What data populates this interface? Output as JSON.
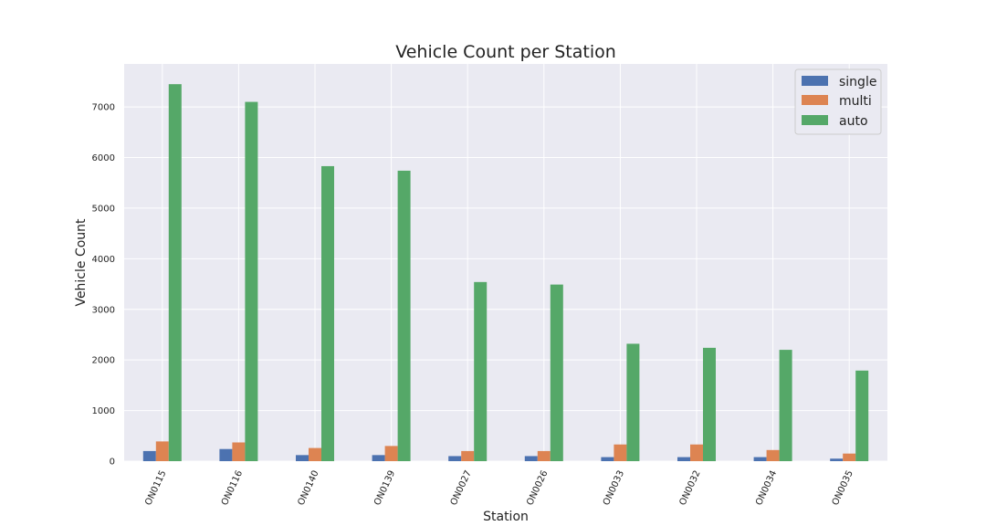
{
  "chart_data": {
    "type": "bar",
    "title": "Vehicle Count per Station",
    "xlabel": "Station",
    "ylabel": "Vehicle Count",
    "categories": [
      "ON0115",
      "ON0116",
      "ON0140",
      "ON0139",
      "ON0027",
      "ON0026",
      "ON0033",
      "ON0032",
      "ON0034",
      "ON0035"
    ],
    "series": [
      {
        "name": "single",
        "color": "#4c72b0",
        "values": [
          200,
          240,
          120,
          120,
          100,
          100,
          80,
          80,
          80,
          50
        ]
      },
      {
        "name": "multi",
        "color": "#dd8452",
        "values": [
          390,
          370,
          260,
          300,
          200,
          200,
          330,
          330,
          220,
          150
        ]
      },
      {
        "name": "auto",
        "color": "#55a868",
        "values": [
          7450,
          7100,
          5830,
          5740,
          3540,
          3490,
          2320,
          2240,
          2200,
          1790
        ]
      }
    ],
    "ylim": [
      0,
      7850
    ],
    "yticks": [
      0,
      1000,
      2000,
      3000,
      4000,
      5000,
      6000,
      7000
    ],
    "grid": true,
    "legend_position": "top-right",
    "background_color": "#eaeaf2",
    "grid_color": "#ffffff"
  }
}
